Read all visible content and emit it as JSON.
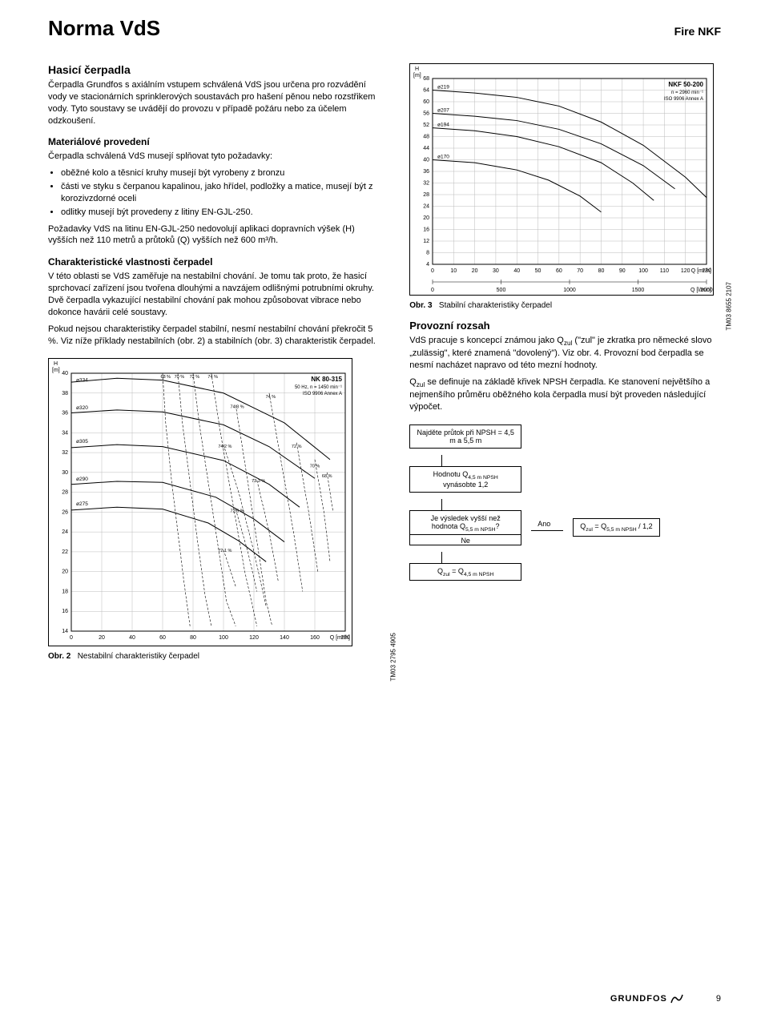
{
  "header": {
    "title": "Norma VdS",
    "product": "Fire NKF"
  },
  "left": {
    "h2": "Hasicí čerpadla",
    "intro": "Čerpadla Grundfos s axiálním vstupem schválená VdS jsou určena pro rozvádění vody ve stacionárních sprinklerových soustavách pro hašení pěnou nebo rozstřikem vody. Tyto soustavy se uvádějí do provozu v případě požáru nebo za účelem odzkoušení.",
    "mat_h": "Materiálové provedení",
    "mat_p": "Čerpadla schválená VdS musejí splňovat tyto požadavky:",
    "bullets": [
      "oběžné kolo a těsnicí kruhy musejí být vyrobeny z bronzu",
      "části ve styku s čerpanou kapalinou, jako hřídel, podložky a matice, musejí být z korozivzdorné oceli",
      "odlitky musejí být provedeny z litiny EN-GJL-250."
    ],
    "req_p": "Požadavky VdS na litinu EN-GJL-250 nedovolují aplikaci dopravních výšek (H) vyšších než 110 metrů a průtoků (Q) vyšších než 600 m³/h.",
    "char_h": "Charakteristické vlastnosti čerpadel",
    "char_p1": "V této oblasti se VdS zaměřuje na nestabilní chování. Je tomu tak proto, že hasicí sprchovací zařízení jsou tvořena dlouhými a navzájem odlišnými potrubními okruhy. Dvě čerpadla vykazující nestabilní chování pak mohou způsobovat vibrace nebo dokonce havárii celé soustavy.",
    "char_p2": "Pokud nejsou charakteristiky čerpadel stabilní, nesmí nestabilní chování překročit 5 %. Viz níže příklady nestabilních (obr. 2) a stabilních (obr. 3) charakteristik čerpadel."
  },
  "right": {
    "fig3_caption_b": "Obr. 3",
    "fig3_caption": "Stabilní charakteristiky čerpadel",
    "prov_h": "Provozní rozsah",
    "prov_p1_a": "VdS pracuje s koncepcí známou jako Q",
    "prov_p1_b": " (\"zul\" je zkratka pro německé slovo „zulässig\", které znamená \"dovolený\"). Viz obr. 4. Provozní bod čerpadla se nesmí nacházet napravo od této mezní hodnoty.",
    "prov_p2_a": "Q",
    "prov_p2_b": " se definuje na základě křivek NPSH čerpadla. Ke stanovení největšího a nejmenšího průměru oběžného kola čerpadla musí být proveden následující výpočet.",
    "flow": {
      "b1": "Najděte průtok při NPSH = 4,5 m a 5,5 m",
      "b2_a": "Hodnotu Q",
      "b2_b": " vynásobte 1,2",
      "b3_a": "Je výsledek vyšší než hodnota Q",
      "b3_q": "?",
      "ne": "Ne",
      "ano": "Ano",
      "b4_a": "Q",
      "b4_b": " = Q",
      "b5_a": "Q",
      "b5_b": " = Q",
      "b5_c": " / 1,2"
    }
  },
  "chart2": {
    "title": "NK 80-315",
    "sub1": "50 Hz, n = 1450 min⁻¹",
    "sub2": "ISO 9906 Annex A",
    "y_label": "H\n[m]",
    "x_label": "Q [m³/h]",
    "x_min": 0,
    "x_max": 180,
    "x_step": 20,
    "y_min": 14,
    "y_max": 40,
    "y_step": 2,
    "diam_labels": [
      "ø334",
      "ø320",
      "ø305",
      "ø290",
      "ø275"
    ],
    "diam_y": [
      39,
      36.2,
      32.8,
      29,
      26.5
    ],
    "eff_labels": [
      "68 %",
      "70 %",
      "72 %",
      "74 %",
      "74.8 %",
      "74.2 %",
      "74 %",
      "73.3 %",
      "72.5 %",
      "72.1 %",
      "72 %",
      "70 %",
      "68 %"
    ],
    "diam_curves": [
      [
        [
          0,
          39.1
        ],
        [
          30,
          39.5
        ],
        [
          60,
          39.3
        ],
        [
          100,
          38.0
        ],
        [
          140,
          35.0
        ],
        [
          170,
          31.3
        ]
      ],
      [
        [
          0,
          36.0
        ],
        [
          30,
          36.3
        ],
        [
          60,
          36.1
        ],
        [
          100,
          34.8
        ],
        [
          130,
          32.6
        ],
        [
          160,
          29.4
        ]
      ],
      [
        [
          0,
          32.5
        ],
        [
          30,
          32.8
        ],
        [
          60,
          32.6
        ],
        [
          100,
          31.2
        ],
        [
          130,
          28.8
        ],
        [
          150,
          26.5
        ]
      ],
      [
        [
          0,
          28.8
        ],
        [
          30,
          29.1
        ],
        [
          60,
          29.0
        ],
        [
          95,
          27.5
        ],
        [
          120,
          25.3
        ],
        [
          140,
          23.0
        ]
      ],
      [
        [
          0,
          26.2
        ],
        [
          30,
          26.5
        ],
        [
          60,
          26.3
        ],
        [
          90,
          24.9
        ],
        [
          110,
          23.1
        ],
        [
          128,
          21.0
        ]
      ]
    ],
    "eff_curves": [
      [
        [
          60,
          40
        ],
        [
          62,
          35
        ],
        [
          66,
          29
        ],
        [
          70,
          24
        ],
        [
          74,
          19
        ],
        [
          78,
          14.5
        ]
      ],
      [
        [
          70,
          40
        ],
        [
          73,
          35
        ],
        [
          78,
          29
        ],
        [
          83,
          23
        ],
        [
          88,
          17.5
        ],
        [
          92,
          14.5
        ]
      ],
      [
        [
          80,
          40
        ],
        [
          84,
          35
        ],
        [
          90,
          29
        ],
        [
          96,
          23
        ],
        [
          102,
          17
        ],
        [
          108,
          14.5
        ]
      ],
      [
        [
          92,
          40
        ],
        [
          98,
          34
        ],
        [
          106,
          27
        ],
        [
          114,
          20
        ],
        [
          122,
          14.5
        ]
      ],
      [
        [
          108,
          36.8
        ],
        [
          115,
          30
        ],
        [
          122,
          23
        ],
        [
          128,
          17
        ],
        [
          132,
          14.5
        ]
      ],
      [
        [
          100,
          32.8
        ],
        [
          110,
          28
        ],
        [
          120,
          22
        ],
        [
          128,
          16.5
        ]
      ],
      [
        [
          130,
          38
        ],
        [
          138,
          31
        ],
        [
          146,
          24
        ],
        [
          152,
          18
        ]
      ],
      [
        [
          122,
          29.2
        ],
        [
          130,
          24
        ],
        [
          136,
          19
        ]
      ],
      [
        [
          108,
          26.3
        ],
        [
          116,
          22
        ],
        [
          122,
          18
        ]
      ],
      [
        [
          100,
          22.2
        ],
        [
          108,
          18.5
        ]
      ],
      [
        [
          148,
          33
        ],
        [
          156,
          26
        ],
        [
          162,
          20
        ]
      ],
      [
        [
          160,
          31.3
        ],
        [
          166,
          26
        ],
        [
          170,
          21
        ]
      ],
      [
        [
          168,
          30
        ],
        [
          172,
          26
        ]
      ]
    ],
    "side_caption": "TM03 2795 4905",
    "caption_b": "Obr. 2",
    "caption": "Nestabilní charakteristiky čerpadel"
  },
  "chart3": {
    "title": "NKF 50-200",
    "sub1": "n = 2960 min⁻¹",
    "sub2": "ISO 9906 Annex A",
    "y_label": "H\n[m]",
    "x_label_top": "Q [m³/h]",
    "x_label_bot": "Q [l/min]",
    "x_min": 0,
    "x_max": 130,
    "x_step": 10,
    "y_min": 4,
    "y_max": 68,
    "y_step": 4,
    "x2_min": 0,
    "x2_max": 2000,
    "x2_step": 500,
    "diam_labels": [
      "ø219",
      "ø207",
      "ø194",
      "ø170"
    ],
    "diam_y": [
      64,
      56,
      51,
      40
    ],
    "diam_curves": [
      [
        [
          0,
          64
        ],
        [
          20,
          63
        ],
        [
          40,
          61.5
        ],
        [
          60,
          58.5
        ],
        [
          80,
          53
        ],
        [
          100,
          45
        ],
        [
          120,
          34
        ],
        [
          130,
          27
        ]
      ],
      [
        [
          0,
          56
        ],
        [
          20,
          55
        ],
        [
          40,
          53.5
        ],
        [
          60,
          50.5
        ],
        [
          80,
          45.5
        ],
        [
          100,
          38
        ],
        [
          115,
          30
        ]
      ],
      [
        [
          0,
          51
        ],
        [
          20,
          50
        ],
        [
          40,
          48
        ],
        [
          60,
          44.5
        ],
        [
          80,
          39
        ],
        [
          95,
          32
        ],
        [
          105,
          26
        ]
      ],
      [
        [
          0,
          40
        ],
        [
          20,
          39
        ],
        [
          40,
          36.5
        ],
        [
          55,
          33
        ],
        [
          70,
          27.5
        ],
        [
          80,
          22
        ]
      ]
    ],
    "side_caption": "TM03 8655 2107"
  },
  "footer": {
    "logo": "GRUNDFOS",
    "page": "9"
  }
}
